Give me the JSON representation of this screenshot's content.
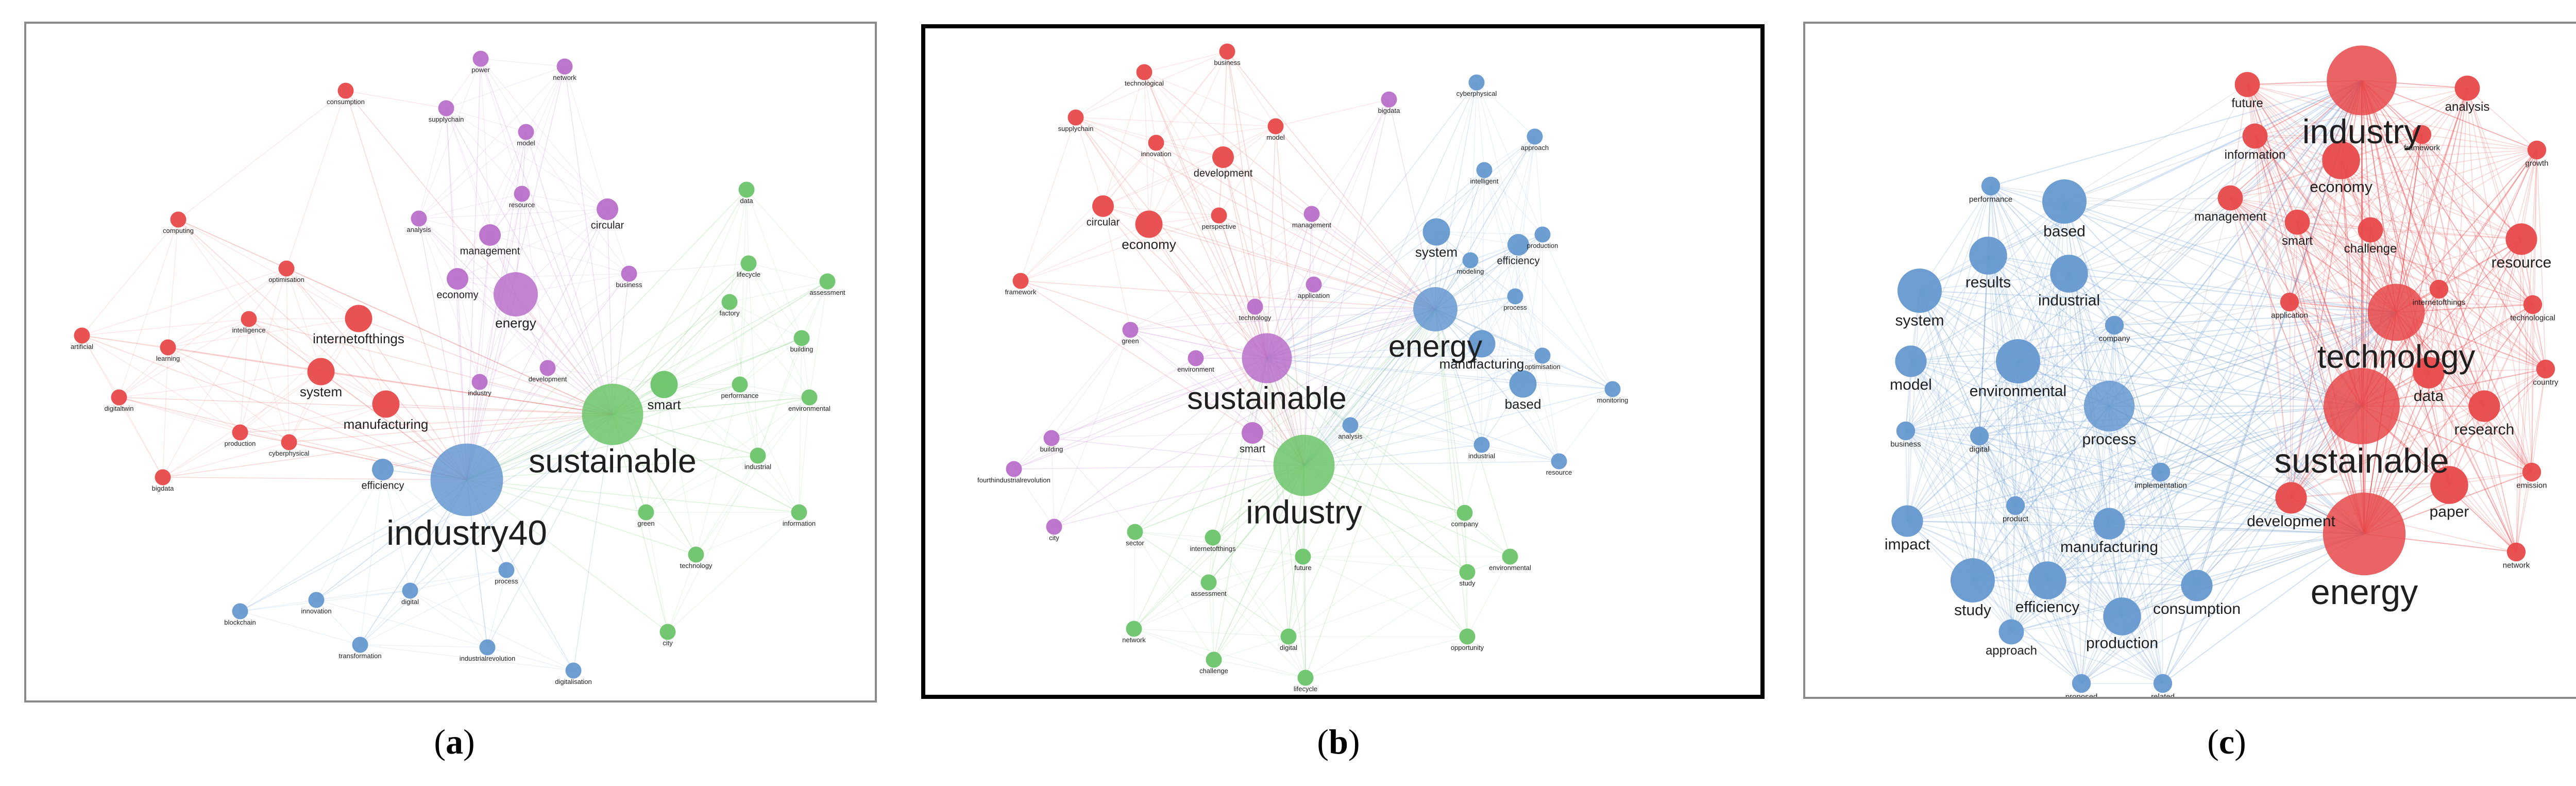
{
  "colors": {
    "red": "#e8494a",
    "purple": "#b86fc9",
    "green": "#6cc46a",
    "blue": "#6598cf",
    "panel_a_border": "#8a8a8a",
    "panel_b_border": "#000000",
    "panel_c_border": "#8a8a8a"
  },
  "panels": [
    {
      "caption_open": "(",
      "caption_letter": "a",
      "caption_close": ")",
      "hubs": [
        "industry40",
        "sustainable"
      ],
      "nodes": [
        {
          "id": "consumption",
          "cluster": "red",
          "weight": 1
        },
        {
          "id": "computing",
          "cluster": "red",
          "weight": 1
        },
        {
          "id": "optimisation",
          "cluster": "red",
          "weight": 1
        },
        {
          "id": "intelligence",
          "cluster": "red",
          "weight": 1
        },
        {
          "id": "artificial",
          "cluster": "red",
          "weight": 1
        },
        {
          "id": "learning",
          "cluster": "red",
          "weight": 1
        },
        {
          "id": "internetofthings",
          "cluster": "red",
          "weight": 3
        },
        {
          "id": "system",
          "cluster": "red",
          "weight": 3
        },
        {
          "id": "digitaltwin",
          "cluster": "red",
          "weight": 1
        },
        {
          "id": "production",
          "cluster": "red",
          "weight": 1
        },
        {
          "id": "cyberphysical",
          "cluster": "red",
          "weight": 1
        },
        {
          "id": "manufacturing",
          "cluster": "red",
          "weight": 3
        },
        {
          "id": "bigdata",
          "cluster": "red",
          "weight": 1
        },
        {
          "id": "power",
          "cluster": "purple",
          "weight": 1
        },
        {
          "id": "network",
          "cluster": "purple",
          "weight": 1
        },
        {
          "id": "supplychain",
          "cluster": "purple",
          "weight": 1
        },
        {
          "id": "model",
          "cluster": "purple",
          "weight": 1
        },
        {
          "id": "resource",
          "cluster": "purple",
          "weight": 1
        },
        {
          "id": "analysis",
          "cluster": "purple",
          "weight": 1
        },
        {
          "id": "circular",
          "cluster": "purple",
          "weight": 2
        },
        {
          "id": "management",
          "cluster": "purple",
          "weight": 2
        },
        {
          "id": "economy",
          "cluster": "purple",
          "weight": 2
        },
        {
          "id": "energy",
          "cluster": "purple",
          "weight": 6
        },
        {
          "id": "business",
          "cluster": "purple",
          "weight": 1
        },
        {
          "id": "development",
          "cluster": "purple",
          "weight": 1
        },
        {
          "id": "industry",
          "cluster": "purple",
          "weight": 1
        },
        {
          "id": "data",
          "cluster": "green",
          "weight": 1
        },
        {
          "id": "lifecycle",
          "cluster": "green",
          "weight": 1
        },
        {
          "id": "assessment",
          "cluster": "green",
          "weight": 1
        },
        {
          "id": "factory",
          "cluster": "green",
          "weight": 1
        },
        {
          "id": "building",
          "cluster": "green",
          "weight": 1
        },
        {
          "id": "smart",
          "cluster": "green",
          "weight": 3
        },
        {
          "id": "performance",
          "cluster": "green",
          "weight": 1
        },
        {
          "id": "environmental",
          "cluster": "green",
          "weight": 1
        },
        {
          "id": "sustainable",
          "cluster": "green",
          "weight": 9
        },
        {
          "id": "industrial",
          "cluster": "green",
          "weight": 1
        },
        {
          "id": "green",
          "cluster": "green",
          "weight": 1
        },
        {
          "id": "information",
          "cluster": "green",
          "weight": 1
        },
        {
          "id": "technology",
          "cluster": "green",
          "weight": 1
        },
        {
          "id": "city",
          "cluster": "green",
          "weight": 1
        },
        {
          "id": "industry40",
          "cluster": "blue",
          "weight": 11
        },
        {
          "id": "efficiency",
          "cluster": "blue",
          "weight": 2
        },
        {
          "id": "process",
          "cluster": "blue",
          "weight": 1
        },
        {
          "id": "digital",
          "cluster": "blue",
          "weight": 1
        },
        {
          "id": "blockchain",
          "cluster": "blue",
          "weight": 1
        },
        {
          "id": "innovation",
          "cluster": "blue",
          "weight": 1
        },
        {
          "id": "transformation",
          "cluster": "blue",
          "weight": 1
        },
        {
          "id": "industrialrevolution",
          "cluster": "blue",
          "weight": 1
        },
        {
          "id": "digitalisation",
          "cluster": "blue",
          "weight": 1
        }
      ]
    },
    {
      "caption_open": "(",
      "caption_letter": "b",
      "caption_close": ")",
      "hubs": [
        "industry",
        "sustainable",
        "energy"
      ],
      "nodes": [
        {
          "id": "business",
          "cluster": "red",
          "weight": 1
        },
        {
          "id": "technological",
          "cluster": "red",
          "weight": 1
        },
        {
          "id": "supplychain",
          "cluster": "red",
          "weight": 1
        },
        {
          "id": "innovation",
          "cluster": "red",
          "weight": 1
        },
        {
          "id": "development",
          "cluster": "red",
          "weight": 2
        },
        {
          "id": "model",
          "cluster": "red",
          "weight": 1
        },
        {
          "id": "circular",
          "cluster": "red",
          "weight": 2
        },
        {
          "id": "economy",
          "cluster": "red",
          "weight": 3
        },
        {
          "id": "perspective",
          "cluster": "red",
          "weight": 1
        },
        {
          "id": "framework",
          "cluster": "red",
          "weight": 1
        },
        {
          "id": "bigdata",
          "cluster": "purple",
          "weight": 1
        },
        {
          "id": "management",
          "cluster": "purple",
          "weight": 1
        },
        {
          "id": "application",
          "cluster": "purple",
          "weight": 1
        },
        {
          "id": "technology",
          "cluster": "purple",
          "weight": 1
        },
        {
          "id": "green",
          "cluster": "purple",
          "weight": 1
        },
        {
          "id": "environment",
          "cluster": "purple",
          "weight": 1
        },
        {
          "id": "sustainable",
          "cluster": "purple",
          "weight": 7
        },
        {
          "id": "building",
          "cluster": "purple",
          "weight": 1
        },
        {
          "id": "smart",
          "cluster": "purple",
          "weight": 2
        },
        {
          "id": "fourthindustrialrevolution",
          "cluster": "purple",
          "weight": 1
        },
        {
          "id": "city",
          "cluster": "purple",
          "weight": 1
        },
        {
          "id": "industry",
          "cluster": "green",
          "weight": 9
        },
        {
          "id": "company",
          "cluster": "green",
          "weight": 1
        },
        {
          "id": "sector",
          "cluster": "green",
          "weight": 1
        },
        {
          "id": "internetofthings",
          "cluster": "green",
          "weight": 1
        },
        {
          "id": "environmental",
          "cluster": "green",
          "weight": 1
        },
        {
          "id": "assessment",
          "cluster": "green",
          "weight": 1
        },
        {
          "id": "future",
          "cluster": "green",
          "weight": 1
        },
        {
          "id": "study",
          "cluster": "green",
          "weight": 1
        },
        {
          "id": "network",
          "cluster": "green",
          "weight": 1
        },
        {
          "id": "digital",
          "cluster": "green",
          "weight": 1
        },
        {
          "id": "opportunity",
          "cluster": "green",
          "weight": 1
        },
        {
          "id": "challenge",
          "cluster": "green",
          "weight": 1
        },
        {
          "id": "lifecycle",
          "cluster": "green",
          "weight": 1
        },
        {
          "id": "cyberphysical",
          "cluster": "blue",
          "weight": 1
        },
        {
          "id": "approach",
          "cluster": "blue",
          "weight": 1
        },
        {
          "id": "intelligent",
          "cluster": "blue",
          "weight": 1
        },
        {
          "id": "system",
          "cluster": "blue",
          "weight": 3
        },
        {
          "id": "production",
          "cluster": "blue",
          "weight": 1
        },
        {
          "id": "modeling",
          "cluster": "blue",
          "weight": 1
        },
        {
          "id": "efficiency",
          "cluster": "blue",
          "weight": 2
        },
        {
          "id": "energy",
          "cluster": "blue",
          "weight": 6
        },
        {
          "id": "process",
          "cluster": "blue",
          "weight": 1
        },
        {
          "id": "manufacturing",
          "cluster": "blue",
          "weight": 3
        },
        {
          "id": "optimisation",
          "cluster": "blue",
          "weight": 1
        },
        {
          "id": "based",
          "cluster": "blue",
          "weight": 3
        },
        {
          "id": "monitoring",
          "cluster": "blue",
          "weight": 1
        },
        {
          "id": "analysis",
          "cluster": "blue",
          "weight": 1
        },
        {
          "id": "industrial",
          "cluster": "blue",
          "weight": 1
        },
        {
          "id": "resource",
          "cluster": "blue",
          "weight": 1
        }
      ]
    },
    {
      "caption_open": "(",
      "caption_letter": "c",
      "caption_close": ")",
      "hubs": [
        "energy",
        "sustainable",
        "industry",
        "technology"
      ],
      "nodes": [
        {
          "id": "industry",
          "cluster": "red",
          "weight": 9
        },
        {
          "id": "future",
          "cluster": "red",
          "weight": 2
        },
        {
          "id": "analysis",
          "cluster": "red",
          "weight": 2
        },
        {
          "id": "information",
          "cluster": "red",
          "weight": 2
        },
        {
          "id": "economy",
          "cluster": "red",
          "weight": 4
        },
        {
          "id": "framework",
          "cluster": "red",
          "weight": 1
        },
        {
          "id": "growth",
          "cluster": "red",
          "weight": 1
        },
        {
          "id": "management",
          "cluster": "red",
          "weight": 2
        },
        {
          "id": "smart",
          "cluster": "red",
          "weight": 2
        },
        {
          "id": "challenge",
          "cluster": "red",
          "weight": 2
        },
        {
          "id": "resource",
          "cluster": "red",
          "weight": 3
        },
        {
          "id": "application",
          "cluster": "red",
          "weight": 1
        },
        {
          "id": "internetofthings",
          "cluster": "red",
          "weight": 1
        },
        {
          "id": "technological",
          "cluster": "red",
          "weight": 1
        },
        {
          "id": "technology",
          "cluster": "red",
          "weight": 7
        },
        {
          "id": "data",
          "cluster": "red",
          "weight": 3
        },
        {
          "id": "country",
          "cluster": "red",
          "weight": 1
        },
        {
          "id": "sustainable",
          "cluster": "red",
          "weight": 10
        },
        {
          "id": "research",
          "cluster": "red",
          "weight": 3
        },
        {
          "id": "emission",
          "cluster": "red",
          "weight": 1
        },
        {
          "id": "development",
          "cluster": "red",
          "weight": 3
        },
        {
          "id": "paper",
          "cluster": "red",
          "weight": 4
        },
        {
          "id": "energy",
          "cluster": "red",
          "weight": 11
        },
        {
          "id": "network",
          "cluster": "red",
          "weight": 1
        },
        {
          "id": "performance",
          "cluster": "blue",
          "weight": 1
        },
        {
          "id": "based",
          "cluster": "blue",
          "weight": 5
        },
        {
          "id": "results",
          "cluster": "blue",
          "weight": 4
        },
        {
          "id": "system",
          "cluster": "blue",
          "weight": 5
        },
        {
          "id": "industrial",
          "cluster": "blue",
          "weight": 4
        },
        {
          "id": "company",
          "cluster": "blue",
          "weight": 1
        },
        {
          "id": "model",
          "cluster": "blue",
          "weight": 3
        },
        {
          "id": "environmental",
          "cluster": "blue",
          "weight": 5
        },
        {
          "id": "business",
          "cluster": "blue",
          "weight": 1
        },
        {
          "id": "digital",
          "cluster": "blue",
          "weight": 1
        },
        {
          "id": "process",
          "cluster": "blue",
          "weight": 6
        },
        {
          "id": "implementation",
          "cluster": "blue",
          "weight": 1
        },
        {
          "id": "impact",
          "cluster": "blue",
          "weight": 3
        },
        {
          "id": "product",
          "cluster": "blue",
          "weight": 1
        },
        {
          "id": "manufacturing",
          "cluster": "blue",
          "weight": 3
        },
        {
          "id": "study",
          "cluster": "blue",
          "weight": 5
        },
        {
          "id": "efficiency",
          "cluster": "blue",
          "weight": 4
        },
        {
          "id": "consumption",
          "cluster": "blue",
          "weight": 3
        },
        {
          "id": "production",
          "cluster": "blue",
          "weight": 4
        },
        {
          "id": "approach",
          "cluster": "blue",
          "weight": 2
        },
        {
          "id": "proposed",
          "cluster": "blue",
          "weight": 1
        },
        {
          "id": "related",
          "cluster": "blue",
          "weight": 1
        }
      ]
    }
  ]
}
